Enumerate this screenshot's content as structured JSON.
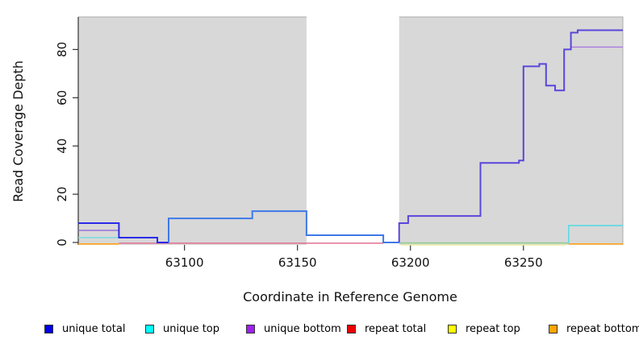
{
  "chart_data": {
    "type": "line",
    "subtype": "step",
    "title": "",
    "xlabel": "Coordinate in Reference Genome",
    "ylabel": "Read Coverage Depth",
    "xlim": [
      63053,
      63294
    ],
    "ylim": [
      -1,
      93.5
    ],
    "xticks": [
      {
        "value": 63100,
        "label": "63100"
      },
      {
        "value": 63150,
        "label": "63150"
      },
      {
        "value": 63200,
        "label": "63200"
      },
      {
        "value": 63250,
        "label": "63250"
      }
    ],
    "yticks": [
      {
        "value": 0,
        "label": "0"
      },
      {
        "value": 20,
        "label": "20"
      },
      {
        "value": 40,
        "label": "40"
      },
      {
        "value": 60,
        "label": "60"
      },
      {
        "value": 80,
        "label": "80"
      }
    ],
    "grid": false,
    "legend_position": "bottom",
    "panel": {
      "background": "#D8D8D8",
      "border_color": "#ACACAC",
      "axis_line_color": "#333333",
      "gap_band": {
        "from": 63154,
        "to": 63195,
        "color": "#FFFFFF"
      }
    },
    "series": [
      {
        "name": "repeat total",
        "legend_color": "#EE0000",
        "parts": [
          {
            "color": "#E07090",
            "width": 1.5,
            "points": [
              [
                63071,
                -0.3
              ],
              [
                63188,
                -0.3
              ]
            ]
          }
        ]
      },
      {
        "name": "repeat top",
        "legend_color": "#FFFF00",
        "parts": [
          {
            "color": "#E9E9A0",
            "width": 1.4,
            "points": [
              [
                63196,
                -1.0
              ],
              [
                63269,
                -1.0
              ]
            ]
          }
        ]
      },
      {
        "name": "repeat bottom",
        "legend_color": "#FFA500",
        "parts": [
          {
            "color": "#FFA51E",
            "width": 1.6,
            "points": [
              [
                63053,
                -0.6
              ],
              [
                63071,
                -0.6
              ]
            ]
          },
          {
            "color": "#FFA51E",
            "width": 1.6,
            "points": [
              [
                63270,
                -0.6
              ],
              [
                63294,
                -0.6
              ]
            ]
          }
        ]
      },
      {
        "name": "unique top",
        "legend_color": "#00FFFF",
        "parts": [
          {
            "color": "#7CDBE0",
            "width": 1.4,
            "points": [
              [
                63053,
                2
              ],
              [
                63071,
                2
              ]
            ]
          },
          {
            "color": "#8FCB8F",
            "width": 1.5,
            "points": [
              [
                63195,
                -0.2
              ],
              [
                63270,
                -0.2
              ]
            ]
          },
          {
            "color": "#4FD9E6",
            "width": 1.4,
            "points": [
              [
                63270,
                -0.2
              ],
              [
                63270,
                7
              ],
              [
                63294,
                7
              ]
            ]
          }
        ]
      },
      {
        "name": "unique bottom",
        "legend_color": "#A020F0",
        "parts": [
          {
            "color": "#9B6FD6",
            "width": 1.4,
            "points": [
              [
                63053,
                5
              ],
              [
                63071,
                5
              ],
              [
                63071,
                2
              ]
            ]
          },
          {
            "color": "#A97BE0",
            "width": 1.4,
            "points": [
              [
                63271,
                81
              ],
              [
                63294,
                81
              ]
            ]
          }
        ]
      },
      {
        "name": "unique total",
        "legend_color": "#0000EE",
        "parts": [
          {
            "color": "#2B2BE8",
            "width": 2,
            "points": [
              [
                63053,
                8
              ],
              [
                63071,
                8
              ],
              [
                63071,
                2
              ],
              [
                63088,
                2
              ],
              [
                63088,
                0
              ],
              [
                63093,
                0
              ]
            ]
          },
          {
            "color": "#3E79E8",
            "width": 2,
            "points": [
              [
                63093,
                0
              ],
              [
                63093,
                10
              ],
              [
                63130,
                10
              ],
              [
                63130,
                13
              ],
              [
                63154,
                13
              ],
              [
                63154,
                3
              ],
              [
                63188,
                3
              ],
              [
                63188,
                0
              ],
              [
                63195,
                0
              ]
            ]
          },
          {
            "color": "#5946DB",
            "width": 2,
            "points": [
              [
                63195,
                0
              ],
              [
                63195,
                8
              ],
              [
                63199,
                8
              ],
              [
                63199,
                11
              ],
              [
                63231,
                11
              ],
              [
                63231,
                33
              ],
              [
                63248,
                33
              ],
              [
                63248,
                34
              ],
              [
                63250,
                34
              ],
              [
                63250,
                73
              ],
              [
                63257,
                73
              ],
              [
                63257,
                74
              ],
              [
                63260,
                74
              ],
              [
                63260,
                65
              ],
              [
                63264,
                65
              ],
              [
                63264,
                63
              ],
              [
                63268,
                63
              ],
              [
                63268,
                80
              ],
              [
                63271,
                80
              ],
              [
                63271,
                87
              ],
              [
                63274,
                87
              ],
              [
                63274,
                88
              ],
              [
                63294,
                88
              ]
            ]
          }
        ]
      }
    ]
  },
  "legend": {
    "items": [
      {
        "label": "unique total",
        "color": "#0000EE"
      },
      {
        "label": "unique top",
        "color": "#00FFFF"
      },
      {
        "label": "unique bottom",
        "color": "#A020F0"
      },
      {
        "label": "repeat total",
        "color": "#EE0000"
      },
      {
        "label": "repeat top",
        "color": "#FFFF00"
      },
      {
        "label": "repeat bottom",
        "color": "#FFA500"
      }
    ]
  }
}
